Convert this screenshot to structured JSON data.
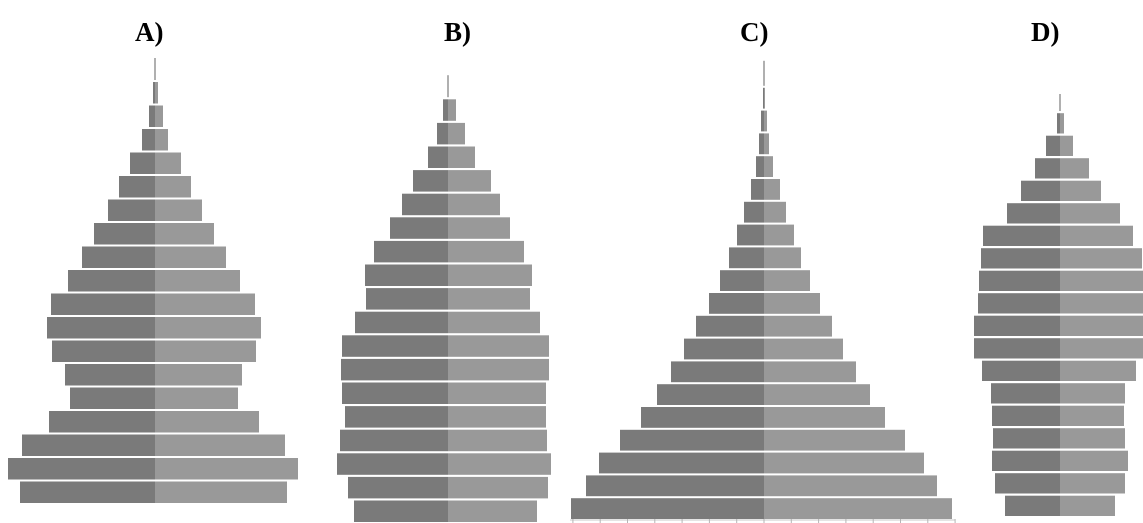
{
  "figure": {
    "left_color": "#7a7a7a",
    "right_color": "#999999",
    "top_stem_color": "#b0b0b0"
  },
  "chart_data": [
    {
      "type": "bar",
      "title": "A)",
      "orientation": "horizontal-population-pyramid",
      "series": [
        {
          "side": "left",
          "values": [
            135,
            147,
            133,
            106,
            85,
            90,
            103,
            108,
            104,
            87,
            73,
            61,
            47,
            36,
            25,
            13,
            6,
            2
          ]
        },
        {
          "side": "right",
          "values": [
            132,
            143,
            130,
            104,
            83,
            87,
            101,
            106,
            100,
            85,
            71,
            59,
            47,
            36,
            26,
            13,
            8,
            3
          ]
        }
      ]
    },
    {
      "type": "bar",
      "title": "B)",
      "orientation": "horizontal-population-pyramid",
      "series": [
        {
          "side": "left",
          "values": [
            94,
            100,
            111,
            108,
            103,
            106,
            107,
            106,
            93,
            82,
            83,
            74,
            58,
            46,
            35,
            20,
            11,
            5
          ]
        },
        {
          "side": "right",
          "values": [
            89,
            100,
            103,
            99,
            98,
            98,
            101,
            101,
            92,
            82,
            84,
            76,
            62,
            52,
            43,
            27,
            17,
            8
          ]
        }
      ]
    },
    {
      "type": "bar",
      "title": "C)",
      "orientation": "horizontal-population-pyramid",
      "series": [
        {
          "side": "left",
          "values": [
            193,
            178,
            165,
            144,
            123,
            107,
            93,
            80,
            68,
            55,
            44,
            35,
            27,
            20,
            13,
            8,
            5,
            3,
            1
          ]
        },
        {
          "side": "right",
          "values": [
            188,
            173,
            160,
            141,
            121,
            106,
            92,
            79,
            68,
            56,
            46,
            37,
            30,
            22,
            16,
            9,
            5,
            3,
            1
          ]
        }
      ]
    },
    {
      "type": "bar",
      "title": "D)",
      "orientation": "horizontal-population-pyramid",
      "series": [
        {
          "side": "left",
          "values": [
            55,
            65,
            68,
            67,
            68,
            69,
            78,
            86,
            86,
            82,
            81,
            79,
            77,
            53,
            39,
            25,
            14,
            3
          ]
        },
        {
          "side": "right",
          "values": [
            55,
            65,
            68,
            65,
            64,
            65,
            76,
            83,
            83,
            83,
            83,
            82,
            73,
            60,
            41,
            29,
            13,
            4
          ]
        }
      ]
    }
  ]
}
